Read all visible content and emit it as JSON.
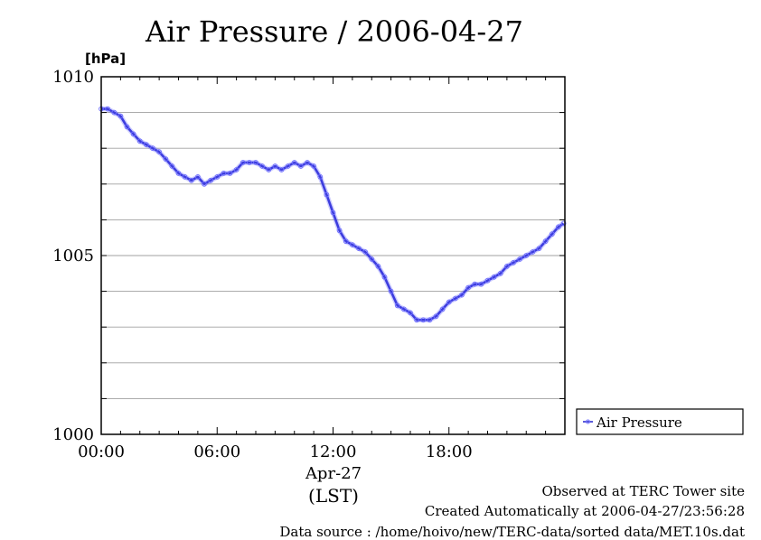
{
  "chart_data": {
    "type": "line",
    "title": "Air Pressure / 2006-04-27",
    "ylabel": "[hPa]",
    "ylim": [
      1000,
      1010
    ],
    "y_ticks": [
      1000,
      1005,
      1010
    ],
    "y_minor_step": 1,
    "xlim": [
      "00:00",
      "24:00"
    ],
    "x_ticks": [
      "00:00",
      "06:00",
      "12:00",
      "18:00"
    ],
    "x_sublabel": "Apr-27",
    "x_unit_label": "(LST)",
    "grid": true,
    "legend_position": "right-bottom",
    "series": [
      {
        "name": "Air Pressure",
        "color": "#2222cc",
        "marker_color": "#7070ff",
        "x": [
          "00:00",
          "00:20",
          "00:40",
          "01:00",
          "01:20",
          "01:40",
          "02:00",
          "02:20",
          "02:40",
          "03:00",
          "03:20",
          "03:40",
          "04:00",
          "04:20",
          "04:40",
          "05:00",
          "05:20",
          "05:40",
          "06:00",
          "06:20",
          "06:40",
          "07:00",
          "07:20",
          "07:40",
          "08:00",
          "08:20",
          "08:40",
          "09:00",
          "09:20",
          "09:40",
          "10:00",
          "10:20",
          "10:40",
          "11:00",
          "11:20",
          "11:40",
          "12:00",
          "12:20",
          "12:40",
          "13:00",
          "13:20",
          "13:40",
          "14:00",
          "14:20",
          "14:40",
          "15:00",
          "15:20",
          "15:40",
          "16:00",
          "16:20",
          "16:40",
          "17:00",
          "17:20",
          "17:40",
          "18:00",
          "18:20",
          "18:40",
          "19:00",
          "19:20",
          "19:40",
          "20:00",
          "20:20",
          "20:40",
          "21:00",
          "21:20",
          "21:40",
          "22:00",
          "22:20",
          "22:40",
          "23:00",
          "23:20",
          "23:40",
          "23:56"
        ],
        "y": [
          1009.1,
          1009.1,
          1009.0,
          1008.9,
          1008.6,
          1008.4,
          1008.2,
          1008.1,
          1008.0,
          1007.9,
          1007.7,
          1007.5,
          1007.3,
          1007.2,
          1007.1,
          1007.2,
          1007.0,
          1007.1,
          1007.2,
          1007.3,
          1007.3,
          1007.4,
          1007.6,
          1007.6,
          1007.6,
          1007.5,
          1007.4,
          1007.5,
          1007.4,
          1007.5,
          1007.6,
          1007.5,
          1007.6,
          1007.5,
          1007.2,
          1006.7,
          1006.2,
          1005.7,
          1005.4,
          1005.3,
          1005.2,
          1005.1,
          1004.9,
          1004.7,
          1004.4,
          1004.0,
          1003.6,
          1003.5,
          1003.4,
          1003.2,
          1003.2,
          1003.2,
          1003.3,
          1003.5,
          1003.7,
          1003.8,
          1003.9,
          1004.1,
          1004.2,
          1004.2,
          1004.3,
          1004.4,
          1004.5,
          1004.7,
          1004.8,
          1004.9,
          1005.0,
          1005.1,
          1005.2,
          1005.4,
          1005.6,
          1005.8,
          1005.9
        ]
      }
    ]
  },
  "footer": {
    "observed": "Observed at TERC Tower site",
    "created": "Created Automatically at 2006-04-27/23:56:28",
    "source": "Data source : /home/hoivo/new/TERC-data/sorted  data/MET.10s.dat"
  }
}
